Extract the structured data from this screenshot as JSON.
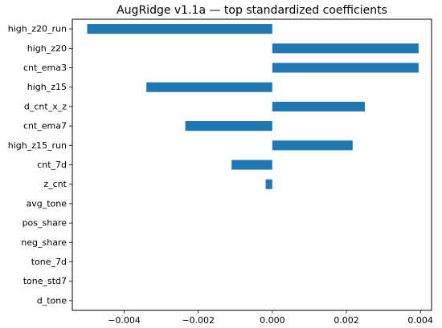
{
  "chart_data": {
    "type": "bar",
    "orientation": "horizontal",
    "title": "AugRidge v1.1a — top standardized coefficients",
    "xlabel": "",
    "ylabel": "",
    "categories": [
      "high_z20_run",
      "high_z20",
      "cnt_ema3",
      "high_z15",
      "d_cnt_x_z",
      "cnt_ema7",
      "high_z15_run",
      "cnt_7d",
      "z_cnt",
      "avg_tone",
      "pos_share",
      "neg_share",
      "tone_7d",
      "tone_std7",
      "d_tone"
    ],
    "values": [
      -0.005,
      0.00395,
      0.00395,
      -0.0034,
      0.0025,
      -0.00235,
      0.00217,
      -0.0011,
      -0.00018,
      0,
      0,
      0,
      0,
      0,
      0
    ],
    "xlim": [
      -0.0054,
      0.0043
    ],
    "xticks": [
      -0.004,
      -0.002,
      0.0,
      0.002,
      0.004
    ],
    "xtick_labels": [
      "−0.004",
      "−0.002",
      "0.000",
      "0.002",
      "0.004"
    ],
    "bar_color": "#1f77b4",
    "grid": false,
    "legend": "none"
  }
}
